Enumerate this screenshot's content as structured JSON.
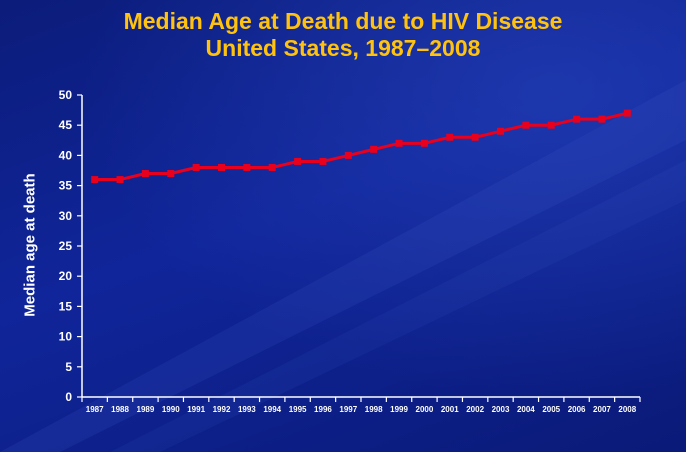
{
  "chart_data": {
    "type": "line",
    "title": "Median Age at Death due to HIV Disease",
    "subtitle": "United States, 1987–2008",
    "ylabel": "Median age at death",
    "xlabel": "",
    "ylim": [
      0,
      50
    ],
    "yticks": [
      0,
      5,
      10,
      15,
      20,
      25,
      30,
      35,
      40,
      45,
      50
    ],
    "grid": false,
    "x": [
      "1987",
      "1988",
      "1989",
      "1990",
      "1991",
      "1992",
      "1993",
      "1994",
      "1995",
      "1996",
      "1997",
      "1998",
      "1999",
      "2000",
      "2001",
      "2002",
      "2003",
      "2004",
      "2005",
      "2006",
      "2007",
      "2008"
    ],
    "series": [
      {
        "values": [
          36,
          36,
          37,
          37,
          38,
          38,
          38,
          38,
          39,
          39,
          40,
          41,
          42,
          42,
          43,
          43,
          44,
          45,
          45,
          46,
          46,
          47
        ]
      }
    ]
  },
  "colors": {
    "background": "#0d1f7a",
    "title": "#ffc20e",
    "line": "#e8001c",
    "axis": "#ffffff"
  }
}
